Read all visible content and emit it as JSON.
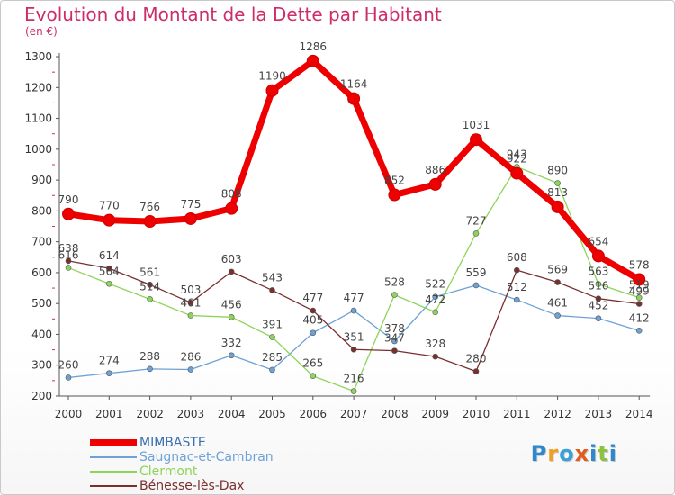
{
  "title": "Evolution du Montant de la Dette par Habitant",
  "subtitle": "(en €)",
  "brand": {
    "letters": [
      "P",
      "r",
      "o",
      "x",
      "i",
      "t",
      "i"
    ],
    "colors": [
      "#2e88cc",
      "#f0a020",
      "#3aa0d8",
      "#e25b1c",
      "#2e88cc",
      "#8cc23c",
      "#2e88cc"
    ]
  },
  "chart_data": {
    "type": "line",
    "x": [
      "2000",
      "2001",
      "2002",
      "2003",
      "2004",
      "2005",
      "2006",
      "2007",
      "2008",
      "2009",
      "2010",
      "2011",
      "2012",
      "2013",
      "2014"
    ],
    "ylim": [
      200,
      1300
    ],
    "yticks": [
      "200",
      "300",
      "400",
      "500",
      "600",
      "700",
      "800",
      "900",
      "1000",
      "1100",
      "1200",
      "1300"
    ],
    "grid": false,
    "legend_position": "bottom-left",
    "series": [
      {
        "name": "MIMBASTE",
        "color": "#ee0000",
        "values": [
          790,
          770,
          766,
          775,
          808,
          1190,
          1286,
          1164,
          852,
          886,
          1031,
          922,
          813,
          654,
          578
        ],
        "labels": [
          "790",
          "770",
          "766",
          "775",
          "808",
          "1190",
          "1286",
          "1164",
          "852",
          "886",
          "1031",
          "922",
          "813",
          "654",
          "578"
        ]
      },
      {
        "name": "Saugnac-et-Cambran",
        "color": "#6ea2d6",
        "values": [
          260,
          274,
          288,
          286,
          332,
          285,
          405,
          477,
          378,
          522,
          559,
          512,
          461,
          452,
          412
        ],
        "labels": [
          "260",
          "274",
          "288",
          "286",
          "332",
          "285",
          "405",
          "477",
          "378",
          "522",
          "559",
          "512",
          "461",
          "452",
          "412"
        ]
      },
      {
        "name": "Clermont",
        "color": "#8fd45a",
        "values": [
          616,
          564,
          514,
          461,
          456,
          391,
          265,
          216,
          528,
          472,
          727,
          943,
          890,
          563,
          519
        ],
        "labels": [
          "616",
          "564",
          "514",
          "461",
          "456",
          "391",
          "265",
          "216",
          "528",
          "472",
          "727",
          "943",
          "890",
          "563",
          "519"
        ]
      },
      {
        "name": "Bénesse-lès-Dax",
        "color": "#7a2f2f",
        "values": [
          638,
          614,
          561,
          503,
          603,
          543,
          477,
          351,
          347,
          328,
          280,
          608,
          569,
          516,
          499
        ],
        "labels": [
          "638",
          "614",
          "561",
          "503",
          "603",
          "543",
          "477",
          "351",
          "347",
          "328",
          "280",
          "608",
          "569",
          "516",
          "499"
        ]
      }
    ]
  }
}
